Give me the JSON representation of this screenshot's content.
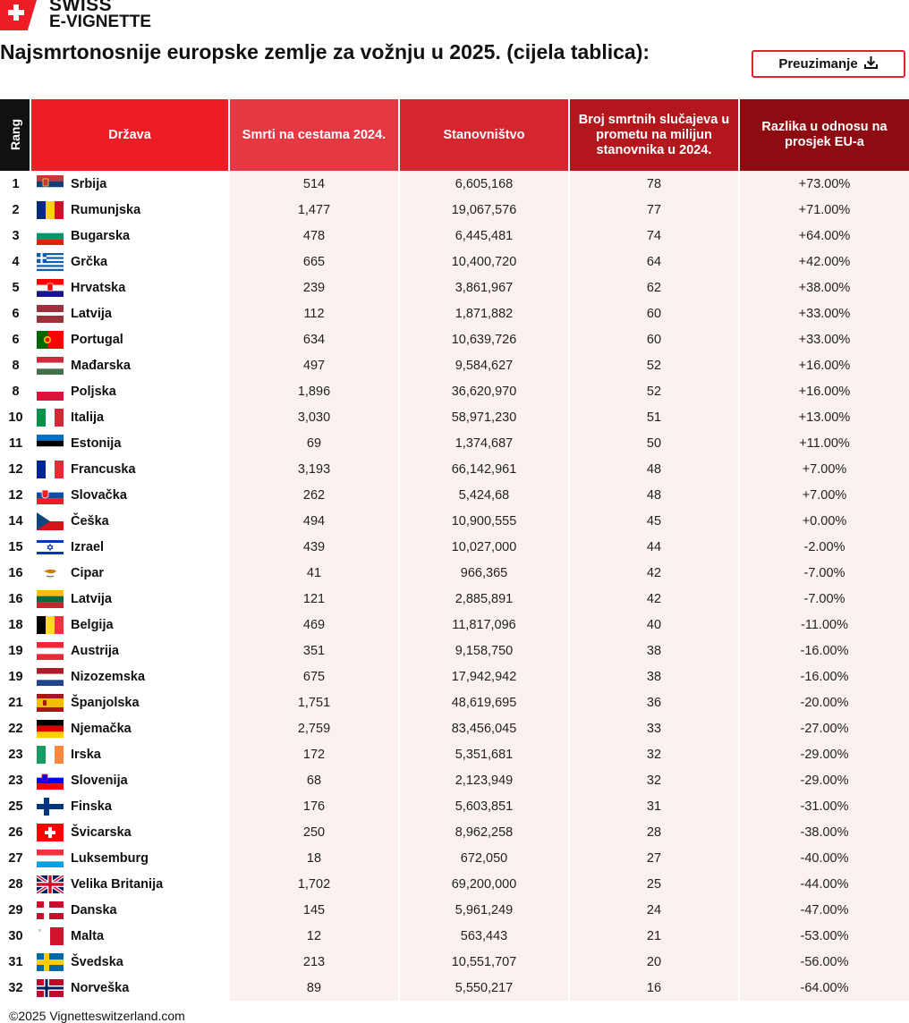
{
  "brand": {
    "line1": "SWISS",
    "line2": "E-VIGNETTE"
  },
  "title": "Najsmrtonosnije europske zemlje za vožnju u 2025. (cijela tablica):",
  "download": {
    "label": "Preuzimanje",
    "icon": "download-icon"
  },
  "table": {
    "headers": {
      "rank": "Rang",
      "country": "Država",
      "deaths": "Smrti na cestama 2024.",
      "population": "Stanovništvo",
      "per_million": "Broj smrtnih slučajeva u prometu na milijun stanovnika u 2024.",
      "diff": "Razlika u odnosu na prosjek EU-a"
    },
    "rows": [
      {
        "rank": "1",
        "country": "Srbija",
        "flag": "rs",
        "deaths": "514",
        "population": "6,605,168",
        "per_million": "78",
        "diff": "+73.00%"
      },
      {
        "rank": "2",
        "country": "Rumunjska",
        "flag": "ro",
        "deaths": "1,477",
        "population": "19,067,576",
        "per_million": "77",
        "diff": "+71.00%"
      },
      {
        "rank": "3",
        "country": "Bugarska",
        "flag": "bg",
        "deaths": "478",
        "population": "6,445,481",
        "per_million": "74",
        "diff": "+64.00%"
      },
      {
        "rank": "4",
        "country": "Grčka",
        "flag": "gr",
        "deaths": "665",
        "population": "10,400,720",
        "per_million": "64",
        "diff": "+42.00%"
      },
      {
        "rank": "5",
        "country": "Hrvatska",
        "flag": "hr",
        "deaths": "239",
        "population": "3,861,967",
        "per_million": "62",
        "diff": "+38.00%"
      },
      {
        "rank": "6",
        "country": "Latvija",
        "flag": "lv",
        "deaths": "112",
        "population": "1,871,882",
        "per_million": "60",
        "diff": "+33.00%"
      },
      {
        "rank": "6",
        "country": "Portugal",
        "flag": "pt",
        "deaths": "634",
        "population": "10,639,726",
        "per_million": "60",
        "diff": "+33.00%"
      },
      {
        "rank": "8",
        "country": "Mađarska",
        "flag": "hu",
        "deaths": "497",
        "population": "9,584,627",
        "per_million": "52",
        "diff": "+16.00%"
      },
      {
        "rank": "8",
        "country": "Poljska",
        "flag": "pl",
        "deaths": "1,896",
        "population": "36,620,970",
        "per_million": "52",
        "diff": "+16.00%"
      },
      {
        "rank": "10",
        "country": "Italija",
        "flag": "it",
        "deaths": "3,030",
        "population": "58,971,230",
        "per_million": "51",
        "diff": "+13.00%"
      },
      {
        "rank": "11",
        "country": "Estonija",
        "flag": "ee",
        "deaths": "69",
        "population": "1,374,687",
        "per_million": "50",
        "diff": "+11.00%"
      },
      {
        "rank": "12",
        "country": "Francuska",
        "flag": "fr",
        "deaths": "3,193",
        "population": "66,142,961",
        "per_million": "48",
        "diff": "+7.00%"
      },
      {
        "rank": "12",
        "country": "Slovačka",
        "flag": "sk",
        "deaths": "262",
        "population": "5,424,68",
        "per_million": "48",
        "diff": "+7.00%"
      },
      {
        "rank": "14",
        "country": "Češka",
        "flag": "cz",
        "deaths": "494",
        "population": "10,900,555",
        "per_million": "45",
        "diff": "+0.00%"
      },
      {
        "rank": "15",
        "country": "Izrael",
        "flag": "il",
        "deaths": "439",
        "population": "10,027,000",
        "per_million": "44",
        "diff": "-2.00%"
      },
      {
        "rank": "16",
        "country": "Cipar",
        "flag": "cy",
        "deaths": "41",
        "population": "966,365",
        "per_million": "42",
        "diff": "-7.00%"
      },
      {
        "rank": "16",
        "country": "Latvija",
        "flag": "lt",
        "deaths": "121",
        "population": "2,885,891",
        "per_million": "42",
        "diff": "-7.00%"
      },
      {
        "rank": "18",
        "country": "Belgija",
        "flag": "be",
        "deaths": "469",
        "population": "11,817,096",
        "per_million": "40",
        "diff": "-11.00%"
      },
      {
        "rank": "19",
        "country": "Austrija",
        "flag": "at",
        "deaths": "351",
        "population": "9,158,750",
        "per_million": "38",
        "diff": "-16.00%"
      },
      {
        "rank": "19",
        "country": "Nizozemska",
        "flag": "nl",
        "deaths": "675",
        "population": "17,942,942",
        "per_million": "38",
        "diff": "-16.00%"
      },
      {
        "rank": "21",
        "country": "Španjolska",
        "flag": "es",
        "deaths": "1,751",
        "population": "48,619,695",
        "per_million": "36",
        "diff": "-20.00%"
      },
      {
        "rank": "22",
        "country": "Njemačka",
        "flag": "de",
        "deaths": "2,759",
        "population": "83,456,045",
        "per_million": "33",
        "diff": "-27.00%"
      },
      {
        "rank": "23",
        "country": "Irska",
        "flag": "ie",
        "deaths": "172",
        "population": "5,351,681",
        "per_million": "32",
        "diff": "-29.00%"
      },
      {
        "rank": "23",
        "country": "Slovenija",
        "flag": "si",
        "deaths": "68",
        "population": "2,123,949",
        "per_million": "32",
        "diff": "-29.00%"
      },
      {
        "rank": "25",
        "country": "Finska",
        "flag": "fi",
        "deaths": "176",
        "population": "5,603,851",
        "per_million": "31",
        "diff": "-31.00%"
      },
      {
        "rank": "26",
        "country": "Švicarska",
        "flag": "ch",
        "deaths": "250",
        "population": "8,962,258",
        "per_million": "28",
        "diff": "-38.00%"
      },
      {
        "rank": "27",
        "country": "Luksemburg",
        "flag": "lu",
        "deaths": "18",
        "population": "672,050",
        "per_million": "27",
        "diff": "-40.00%"
      },
      {
        "rank": "28",
        "country": "Velika Britanija",
        "flag": "gb",
        "deaths": "1,702",
        "population": "69,200,000",
        "per_million": "25",
        "diff": "-44.00%"
      },
      {
        "rank": "29",
        "country": "Danska",
        "flag": "dk",
        "deaths": "145",
        "population": "5,961,249",
        "per_million": "24",
        "diff": "-47.00%"
      },
      {
        "rank": "30",
        "country": "Malta",
        "flag": "mt",
        "deaths": "12",
        "population": "563,443",
        "per_million": "21",
        "diff": "-53.00%"
      },
      {
        "rank": "31",
        "country": "Švedska",
        "flag": "se",
        "deaths": "213",
        "population": "10,551,707",
        "per_million": "20",
        "diff": "-56.00%"
      },
      {
        "rank": "32",
        "country": "Norveška",
        "flag": "no",
        "deaths": "89",
        "population": "5,550,217",
        "per_million": "16",
        "diff": "-64.00%"
      }
    ]
  },
  "footer": "©2025 Vignetteswitzerland.com",
  "colors": {
    "accent": "#ee1c25",
    "header_dark": "#8d0b11",
    "row_tint": "#fbf1f1"
  }
}
